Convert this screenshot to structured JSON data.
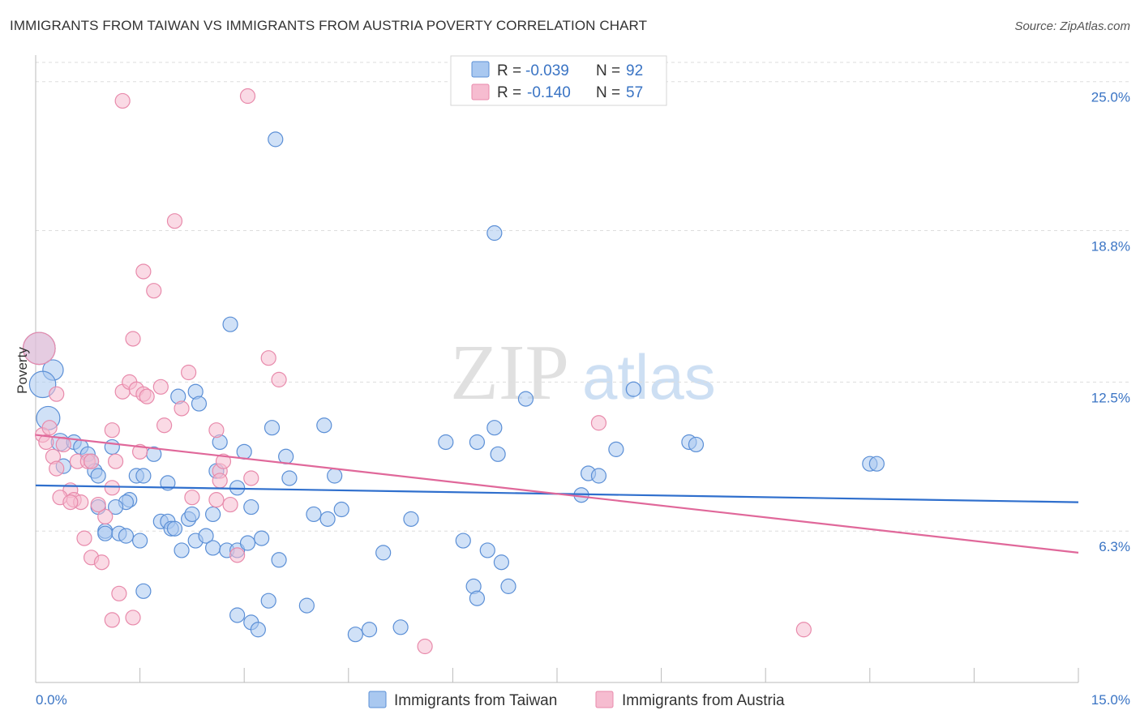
{
  "title": "IMMIGRANTS FROM TAIWAN VS IMMIGRANTS FROM AUSTRIA POVERTY CORRELATION CHART",
  "source": "Source: ZipAtlas.com",
  "watermark": {
    "zip": "ZIP",
    "atlas": "atlas"
  },
  "colors": {
    "taiwan_fill": "#a9c8f0",
    "taiwan_stroke": "#5b8fd6",
    "taiwan_line": "#2f6fcd",
    "austria_fill": "#f6bcd0",
    "austria_stroke": "#e88aab",
    "austria_line": "#e0689a",
    "tick": "#3a74c4",
    "grid": "#dddddd"
  },
  "legend": {
    "rows": [
      {
        "r_label": "R =",
        "r_value": "-0.039",
        "n_label": "N =",
        "n_value": "92"
      },
      {
        "r_label": "R =",
        "r_value": "-0.140",
        "n_label": "N =",
        "n_value": "57"
      }
    ]
  },
  "chart_data": {
    "type": "scatter",
    "title": "IMMIGRANTS FROM TAIWAN VS IMMIGRANTS FROM AUSTRIA POVERTY CORRELATION CHART",
    "xlabel": "",
    "ylabel": "Poverty",
    "xlim": [
      0,
      15
    ],
    "ylim": [
      0,
      25.8
    ],
    "x_tick_labels": [
      {
        "value": 0,
        "label": "0.0%"
      },
      {
        "value": 15,
        "label": "15.0%"
      }
    ],
    "x_minor_ticks": [
      0,
      1.5,
      3,
      4.5,
      6,
      7.5,
      9,
      10.5,
      12,
      13.5,
      15
    ],
    "y_ticks": [
      {
        "value": 6.3,
        "label": "6.3%"
      },
      {
        "value": 12.5,
        "label": "12.5%"
      },
      {
        "value": 18.8,
        "label": "18.8%"
      },
      {
        "value": 25.0,
        "label": "25.0%"
      }
    ],
    "series": [
      {
        "name": "Immigrants from Taiwan",
        "R": -0.039,
        "N": 92,
        "trend": {
          "x": [
            0,
            15
          ],
          "y": [
            8.2,
            7.5
          ]
        },
        "points": [
          [
            0.05,
            13.9,
            2.2
          ],
          [
            0.25,
            13.0,
            1.4
          ],
          [
            0.1,
            12.4,
            1.8
          ],
          [
            0.18,
            11.0,
            1.6
          ],
          [
            0.35,
            10.0,
            1.2
          ],
          [
            0.55,
            10.0,
            1.0
          ],
          [
            0.65,
            9.8,
            1.0
          ],
          [
            0.75,
            9.5,
            1.0
          ],
          [
            0.8,
            9.2,
            1.0
          ],
          [
            0.85,
            8.8,
            1.0
          ],
          [
            0.9,
            8.6,
            1.0
          ],
          [
            1.1,
            9.8,
            1.0
          ],
          [
            0.4,
            9.0,
            1.0
          ],
          [
            1.45,
            8.6,
            1.0
          ],
          [
            1.55,
            8.6,
            1.0
          ],
          [
            1.7,
            9.5,
            1.0
          ],
          [
            1.9,
            8.3,
            1.0
          ],
          [
            1.35,
            7.6,
            1.0
          ],
          [
            1.3,
            7.5,
            1.0
          ],
          [
            1.15,
            7.3,
            1.0
          ],
          [
            0.9,
            7.3,
            1.0
          ],
          [
            1.0,
            6.3,
            1.0
          ],
          [
            1.0,
            6.2,
            1.0
          ],
          [
            1.2,
            6.2,
            1.0
          ],
          [
            1.3,
            6.1,
            1.0
          ],
          [
            1.5,
            5.9,
            1.0
          ],
          [
            1.8,
            6.7,
            1.0
          ],
          [
            1.9,
            6.7,
            1.0
          ],
          [
            1.95,
            6.4,
            1.0
          ],
          [
            2.0,
            6.4,
            1.0
          ],
          [
            2.2,
            6.8,
            1.0
          ],
          [
            2.25,
            7.0,
            1.0
          ],
          [
            2.3,
            5.9,
            1.0
          ],
          [
            2.1,
            5.5,
            1.0
          ],
          [
            2.45,
            6.1,
            1.0
          ],
          [
            2.55,
            5.6,
            1.0
          ],
          [
            2.55,
            7.0,
            1.0
          ],
          [
            2.6,
            8.8,
            1.0
          ],
          [
            2.65,
            10.0,
            1.0
          ],
          [
            2.3,
            12.1,
            1.0
          ],
          [
            2.35,
            11.6,
            1.0
          ],
          [
            2.05,
            11.9,
            1.0
          ],
          [
            2.8,
            14.9,
            1.0
          ],
          [
            2.9,
            8.1,
            1.0
          ],
          [
            3.0,
            9.6,
            1.0
          ],
          [
            3.1,
            7.3,
            1.0
          ],
          [
            2.75,
            5.5,
            1.0
          ],
          [
            2.9,
            5.5,
            1.0
          ],
          [
            3.05,
            5.8,
            1.0
          ],
          [
            3.25,
            6.0,
            1.0
          ],
          [
            3.4,
            10.6,
            1.0
          ],
          [
            3.6,
            9.4,
            1.0
          ],
          [
            3.65,
            8.5,
            1.0
          ],
          [
            3.5,
            5.1,
            1.0
          ],
          [
            3.35,
            3.4,
            1.0
          ],
          [
            3.1,
            2.5,
            1.0
          ],
          [
            3.2,
            2.2,
            1.0
          ],
          [
            2.9,
            2.8,
            1.0
          ],
          [
            3.45,
            22.6,
            1.0
          ],
          [
            3.9,
            3.2,
            1.0
          ],
          [
            4.0,
            7.0,
            1.0
          ],
          [
            4.2,
            6.8,
            1.0
          ],
          [
            4.3,
            8.6,
            1.0
          ],
          [
            4.15,
            10.7,
            1.0
          ],
          [
            4.4,
            7.2,
            1.0
          ],
          [
            4.6,
            2.0,
            1.0
          ],
          [
            4.8,
            2.2,
            1.0
          ],
          [
            5.0,
            5.4,
            1.0
          ],
          [
            5.25,
            2.3,
            1.0
          ],
          [
            5.4,
            6.8,
            1.0
          ],
          [
            5.9,
            10.0,
            1.0
          ],
          [
            6.15,
            5.9,
            1.0
          ],
          [
            6.3,
            4.0,
            1.0
          ],
          [
            6.35,
            3.5,
            1.0
          ],
          [
            6.35,
            10.0,
            1.0
          ],
          [
            6.5,
            5.5,
            1.0
          ],
          [
            6.7,
            5.0,
            1.0
          ],
          [
            6.8,
            4.0,
            1.0
          ],
          [
            6.6,
            10.6,
            1.0
          ],
          [
            6.65,
            9.5,
            1.0
          ],
          [
            6.6,
            18.7,
            1.0
          ],
          [
            7.05,
            11.8,
            1.0
          ],
          [
            7.85,
            7.8,
            1.0
          ],
          [
            7.95,
            8.7,
            1.0
          ],
          [
            8.1,
            8.6,
            1.0
          ],
          [
            8.35,
            9.7,
            1.0
          ],
          [
            8.6,
            12.2,
            1.0
          ],
          [
            9.4,
            10.0,
            1.0
          ],
          [
            9.5,
            9.9,
            1.0
          ],
          [
            12.0,
            9.1,
            1.0
          ],
          [
            12.1,
            9.1,
            1.0
          ],
          [
            1.55,
            3.8,
            1.0
          ]
        ]
      },
      {
        "name": "Immigrants from Austria",
        "R": -0.14,
        "N": 57,
        "trend": {
          "x": [
            0,
            15
          ],
          "y": [
            10.3,
            5.4
          ]
        },
        "points": [
          [
            0.05,
            13.9,
            2.2
          ],
          [
            0.1,
            10.3,
            1.0
          ],
          [
            0.15,
            10.0,
            1.0
          ],
          [
            0.2,
            10.6,
            1.0
          ],
          [
            0.25,
            9.4,
            1.0
          ],
          [
            0.3,
            12.0,
            1.0
          ],
          [
            0.3,
            8.9,
            1.0
          ],
          [
            0.4,
            9.9,
            1.0
          ],
          [
            0.5,
            8.0,
            1.0
          ],
          [
            0.55,
            7.6,
            1.0
          ],
          [
            0.65,
            7.5,
            1.0
          ],
          [
            0.6,
            9.2,
            1.0
          ],
          [
            0.75,
            9.2,
            1.0
          ],
          [
            0.8,
            9.2,
            1.0
          ],
          [
            0.35,
            7.7,
            1.0
          ],
          [
            0.5,
            7.5,
            1.0
          ],
          [
            0.7,
            6.0,
            1.0
          ],
          [
            0.8,
            5.2,
            1.0
          ],
          [
            0.95,
            5.0,
            1.0
          ],
          [
            1.0,
            6.9,
            1.0
          ],
          [
            1.1,
            8.1,
            1.0
          ],
          [
            1.1,
            10.5,
            1.0
          ],
          [
            1.15,
            9.2,
            1.0
          ],
          [
            1.25,
            12.1,
            1.0
          ],
          [
            1.35,
            12.5,
            1.0
          ],
          [
            1.4,
            14.3,
            1.0
          ],
          [
            1.45,
            12.2,
            1.0
          ],
          [
            1.5,
            9.6,
            1.0
          ],
          [
            1.55,
            12.0,
            1.0
          ],
          [
            1.6,
            11.9,
            1.0
          ],
          [
            1.55,
            17.1,
            1.0
          ],
          [
            1.7,
            16.3,
            1.0
          ],
          [
            1.8,
            12.3,
            1.0
          ],
          [
            1.85,
            10.7,
            1.0
          ],
          [
            1.25,
            24.2,
            1.0
          ],
          [
            1.2,
            3.7,
            1.0
          ],
          [
            1.1,
            2.6,
            1.0
          ],
          [
            1.4,
            2.7,
            1.0
          ],
          [
            2.0,
            19.2,
            1.0
          ],
          [
            2.1,
            11.4,
            1.0
          ],
          [
            2.2,
            12.9,
            1.0
          ],
          [
            2.25,
            7.7,
            1.0
          ],
          [
            2.6,
            10.5,
            1.0
          ],
          [
            2.6,
            7.6,
            1.0
          ],
          [
            2.65,
            8.8,
            1.0
          ],
          [
            2.7,
            9.2,
            1.0
          ],
          [
            2.8,
            7.4,
            1.0
          ],
          [
            2.9,
            5.3,
            1.0
          ],
          [
            3.1,
            8.5,
            1.0
          ],
          [
            3.05,
            24.4,
            1.0
          ],
          [
            3.35,
            13.5,
            1.0
          ],
          [
            3.5,
            12.6,
            1.0
          ],
          [
            2.65,
            8.4,
            1.0
          ],
          [
            5.6,
            1.5,
            1.0
          ],
          [
            8.1,
            10.8,
            1.0
          ],
          [
            11.05,
            2.2,
            1.0
          ],
          [
            0.9,
            7.4,
            1.0
          ]
        ]
      }
    ]
  },
  "bottom_legend": [
    {
      "label": "Immigrants from Taiwan"
    },
    {
      "label": "Immigrants from Austria"
    }
  ]
}
